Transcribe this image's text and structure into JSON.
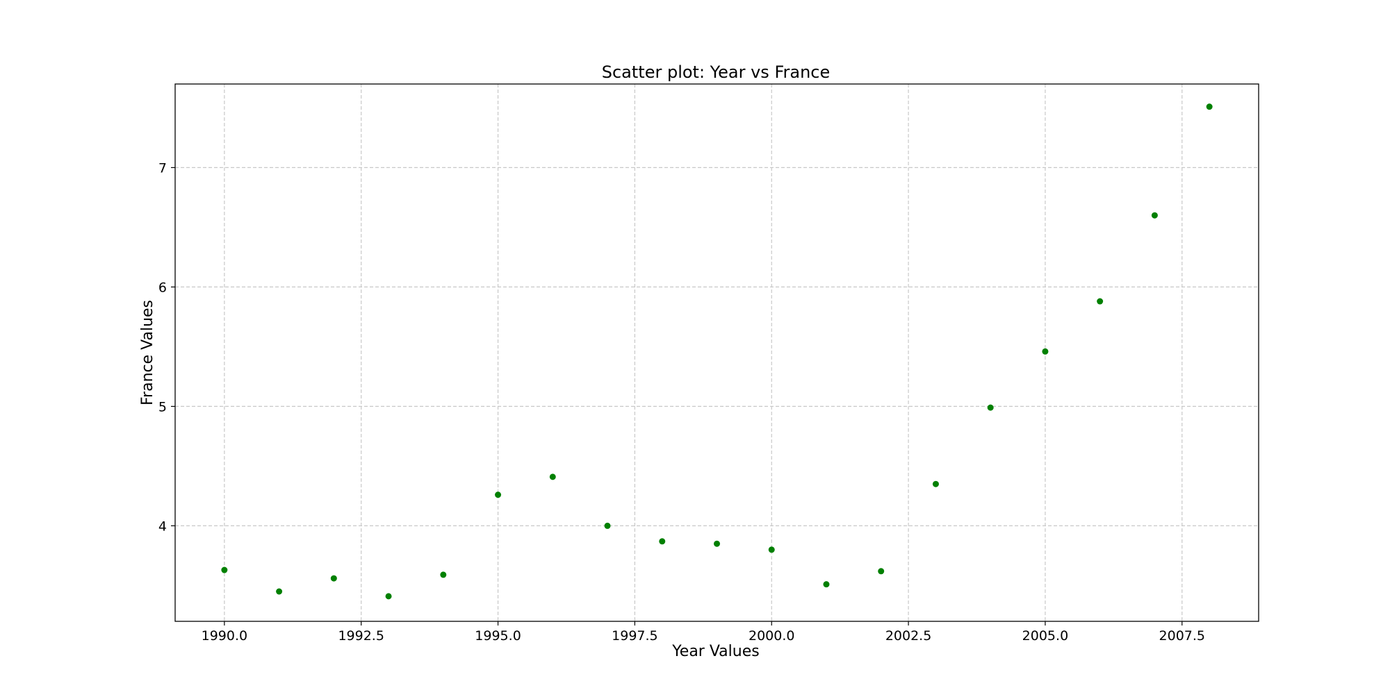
{
  "chart_data": {
    "type": "scatter",
    "title": "Scatter plot: Year vs France",
    "xlabel": "Year Values",
    "ylabel": "France Values",
    "xlim": [
      1989.1,
      2008.9
    ],
    "ylim": [
      3.2,
      7.7
    ],
    "xticks": [
      1990.0,
      1992.5,
      1995.0,
      1997.5,
      2000.0,
      2002.5,
      2005.0,
      2007.5
    ],
    "xtick_labels": [
      "1990.0",
      "1992.5",
      "1995.0",
      "1997.5",
      "2000.0",
      "2002.5",
      "2005.0",
      "2007.5"
    ],
    "yticks": [
      4,
      5,
      6,
      7
    ],
    "ytick_labels": [
      "4",
      "5",
      "6",
      "7"
    ],
    "grid": true,
    "marker_color": "#008000",
    "points": [
      {
        "x": 1990,
        "y": 3.63
      },
      {
        "x": 1991,
        "y": 3.45
      },
      {
        "x": 1992,
        "y": 3.56
      },
      {
        "x": 1993,
        "y": 3.41
      },
      {
        "x": 1994,
        "y": 3.59
      },
      {
        "x": 1995,
        "y": 4.26
      },
      {
        "x": 1996,
        "y": 4.41
      },
      {
        "x": 1997,
        "y": 4.0
      },
      {
        "x": 1998,
        "y": 3.87
      },
      {
        "x": 1999,
        "y": 3.85
      },
      {
        "x": 2000,
        "y": 3.8
      },
      {
        "x": 2001,
        "y": 3.51
      },
      {
        "x": 2002,
        "y": 3.62
      },
      {
        "x": 2003,
        "y": 4.35
      },
      {
        "x": 2004,
        "y": 4.99
      },
      {
        "x": 2005,
        "y": 5.46
      },
      {
        "x": 2006,
        "y": 5.88
      },
      {
        "x": 2007,
        "y": 6.6
      },
      {
        "x": 2008,
        "y": 7.51
      }
    ]
  }
}
